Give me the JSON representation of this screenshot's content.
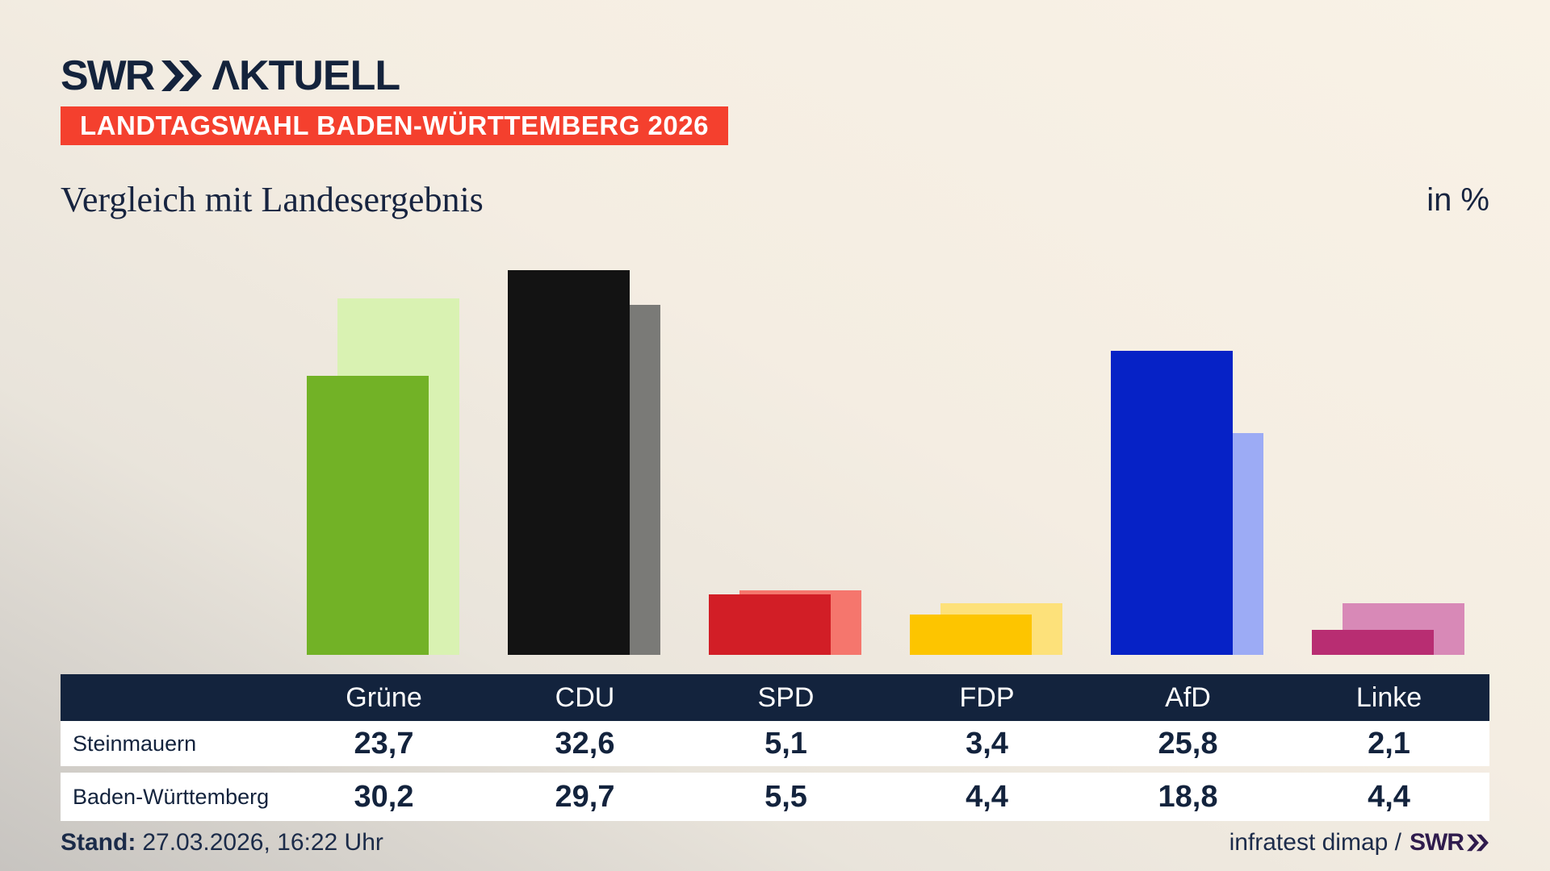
{
  "logo": {
    "brand": "SWR",
    "chevrons": "≫",
    "suffix": "ΛKTUELL"
  },
  "banner": {
    "text": "LANDTAGSWAHL BADEN-WÜRTTEMBERG 2026",
    "bg": "#f4402e"
  },
  "title": "Vergleich mit Landesergebnis",
  "unit_label": "in %",
  "chart_data": {
    "type": "bar",
    "categories": [
      "Grüne",
      "CDU",
      "SPD",
      "FDP",
      "AfD",
      "Linke"
    ],
    "series": [
      {
        "name": "Steinmauern",
        "values": [
          23.7,
          32.6,
          5.1,
          3.4,
          25.8,
          2.1
        ]
      },
      {
        "name": "Baden-Württemberg",
        "values": [
          30.2,
          29.7,
          5.5,
          4.4,
          18.8,
          4.4
        ]
      }
    ],
    "colors": {
      "constituency": [
        "#72b226",
        "#131313",
        "#d21e26",
        "#fdc500",
        "#0622c6",
        "#b82d72"
      ],
      "state": [
        "#d9f2b2",
        "#7a7a77",
        "#f5766d",
        "#fde17a",
        "#9cabf5",
        "#d889b7"
      ]
    },
    "unit": "%",
    "ylim": [
      0,
      36
    ],
    "grid": false,
    "legend_position": "table-below",
    "title": "Vergleich mit Landesergebnis"
  },
  "table": {
    "header_bg": "#13233d",
    "header": [
      "Grüne",
      "CDU",
      "SPD",
      "FDP",
      "AfD",
      "Linke"
    ],
    "rows": [
      {
        "label": "Steinmauern",
        "values": [
          "23,7",
          "32,6",
          "5,1",
          "3,4",
          "25,8",
          "2,1"
        ]
      },
      {
        "label": "Baden-Württemberg",
        "values": [
          "30,2",
          "29,7",
          "5,5",
          "4,4",
          "18,8",
          "4,4"
        ]
      }
    ]
  },
  "footer": {
    "stand_label": "Stand:",
    "stand_value": "27.03.2026, 16:22 Uhr",
    "source": "infratest dimap /",
    "brand": "SWR≫"
  }
}
